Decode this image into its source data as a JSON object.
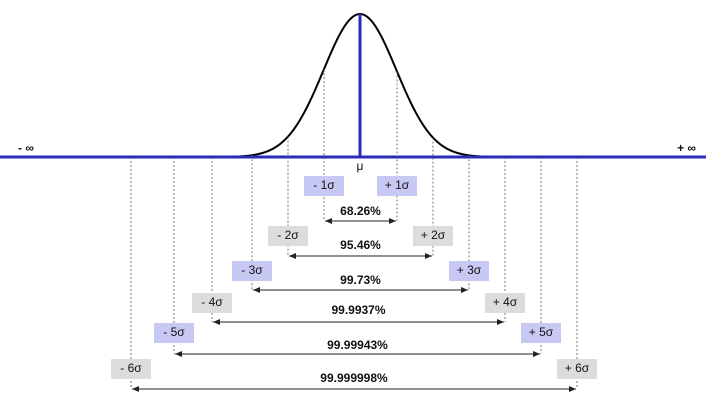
{
  "left_infinity": "- ∞",
  "right_infinity": "+ ∞",
  "mean_label": "μ",
  "intervals": [
    {
      "minus": "- 1σ",
      "plus": "+ 1σ",
      "coverage": "68.26%"
    },
    {
      "minus": "- 2σ",
      "plus": "+ 2σ",
      "coverage": "95.46%"
    },
    {
      "minus": "- 3σ",
      "plus": "+ 3σ",
      "coverage": "99.73%"
    },
    {
      "minus": "- 4σ",
      "plus": "+ 4σ",
      "coverage": "99.9937%"
    },
    {
      "minus": "- 5σ",
      "plus": "+ 5σ",
      "coverage": "99.99943%"
    },
    {
      "minus": "- 6σ",
      "plus": "+ 6σ",
      "coverage": "99.999998%"
    }
  ]
}
